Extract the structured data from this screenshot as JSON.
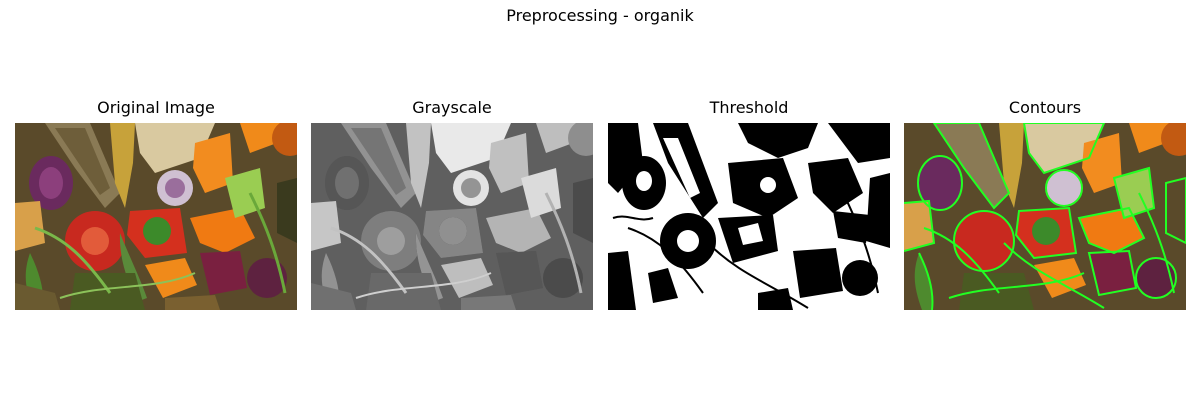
{
  "figure": {
    "title": "Preprocessing - organik"
  },
  "panels": [
    {
      "title": "Original Image",
      "kind": "color"
    },
    {
      "title": "Grayscale",
      "kind": "gray"
    },
    {
      "title": "Threshold",
      "kind": "binary"
    },
    {
      "title": "Contours",
      "kind": "contours"
    }
  ],
  "colors": {
    "contour": "#22ff22",
    "background": "#ffffff"
  }
}
